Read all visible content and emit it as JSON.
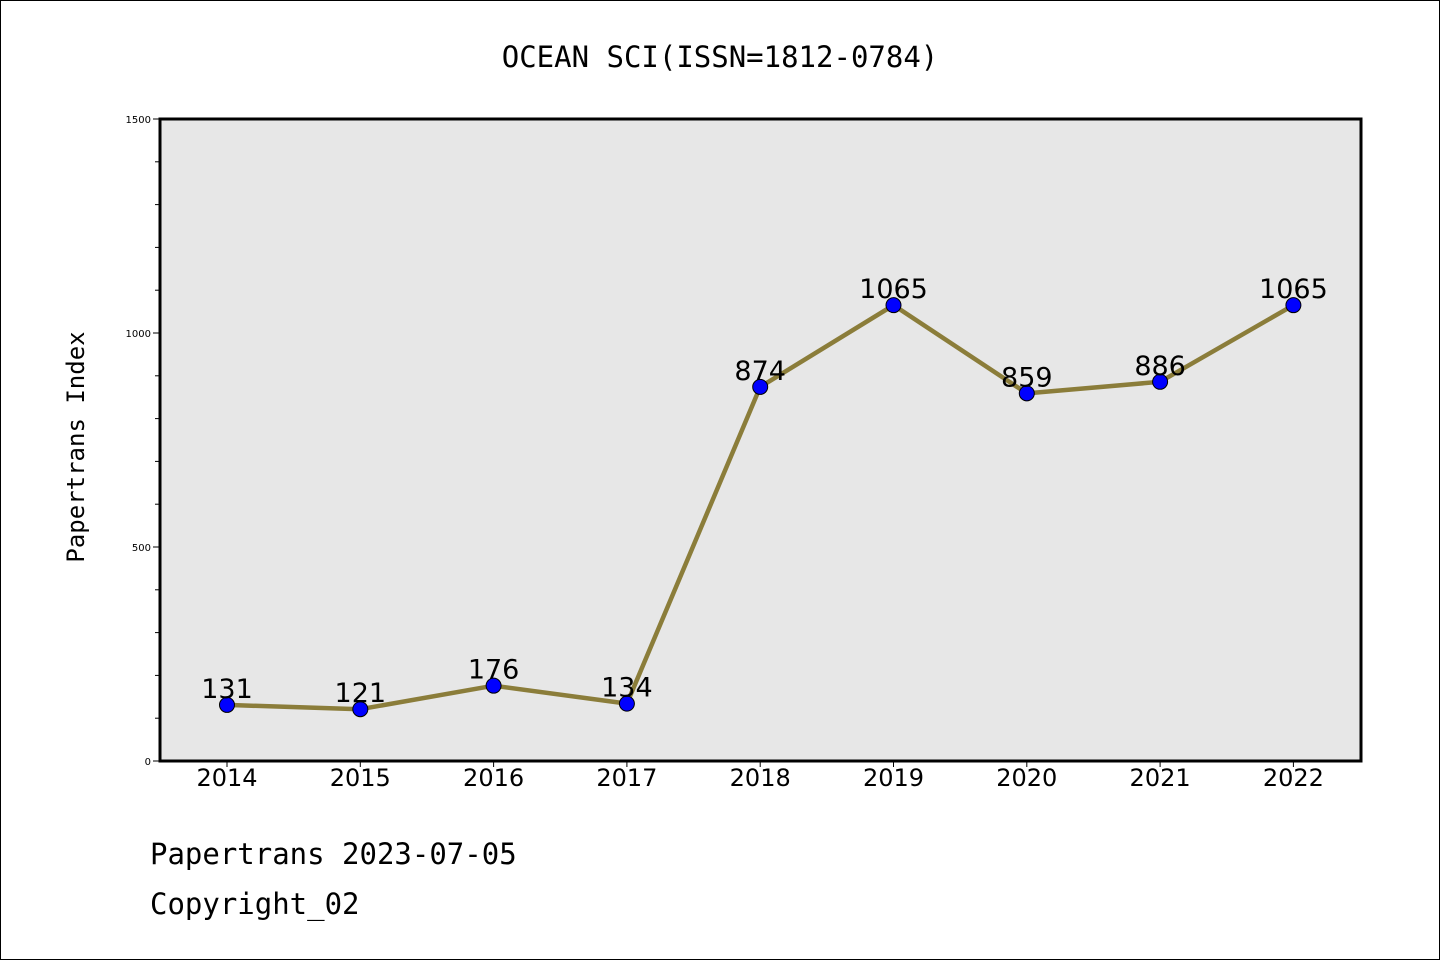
{
  "chart_data": {
    "type": "line",
    "title": "OCEAN SCI(ISSN=1812-0784)",
    "xlabel": "",
    "ylabel": "Papertrans Index",
    "categories": [
      "2014",
      "2015",
      "2016",
      "2017",
      "2018",
      "2019",
      "2020",
      "2021",
      "2022"
    ],
    "values": [
      131,
      121,
      176,
      134,
      874,
      1065,
      859,
      886,
      1065
    ],
    "data_labels": [
      "131",
      "121",
      "176",
      "134",
      "874",
      "1065",
      "859",
      "886",
      "1065"
    ],
    "ylim": [
      0,
      1500
    ],
    "y_ticks": [
      0,
      500,
      1000,
      1500
    ],
    "y_tick_labels": [
      "0",
      "500",
      "1000",
      "1500"
    ],
    "grid": false,
    "colors": {
      "line": "#8b7d3a",
      "marker": "#0000ff",
      "plot_background": "#e7e7e7",
      "frame": "#000000"
    }
  },
  "footer": {
    "source": "Papertrans 2023-07-05",
    "copyright": "Copyright_02"
  }
}
